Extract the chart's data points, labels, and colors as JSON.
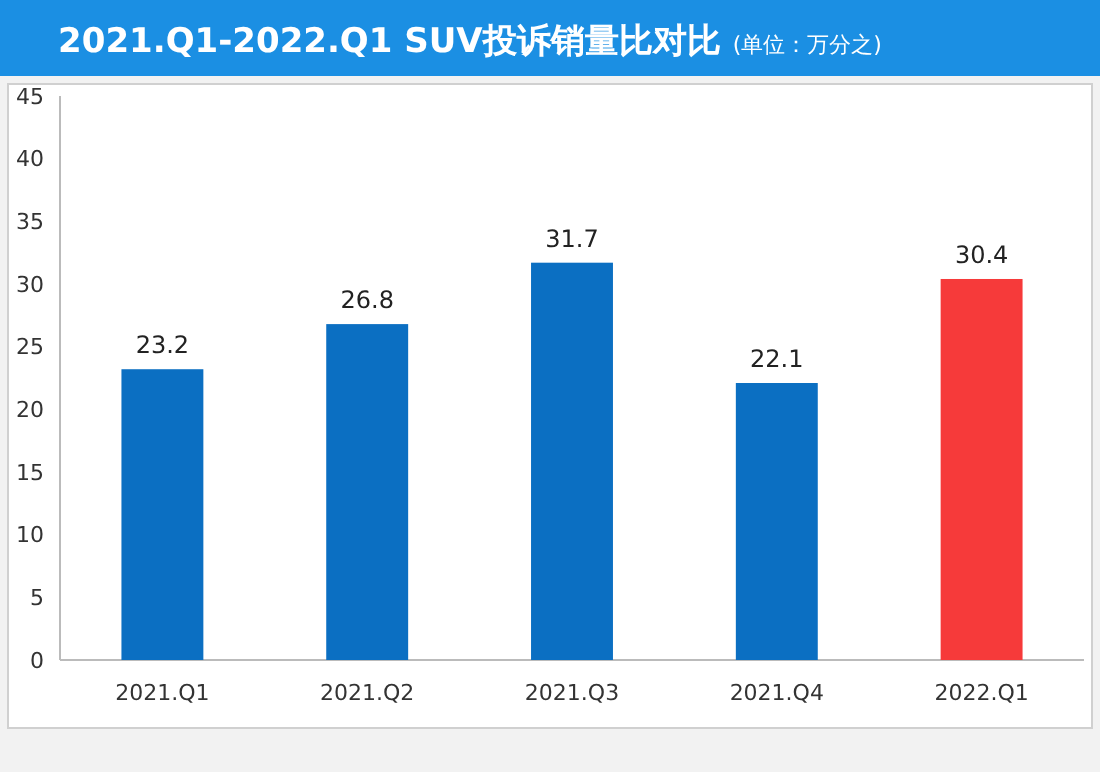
{
  "chart_data": {
    "type": "bar",
    "title": "2021.Q1-2022.Q1 SUV投诉销量比对比",
    "subtitle": "(单位：万分之)",
    "categories": [
      "2021.Q1",
      "2021.Q2",
      "2021.Q3",
      "2021.Q4",
      "2022.Q1"
    ],
    "values": [
      23.2,
      26.8,
      31.7,
      22.1,
      30.4
    ],
    "colors": [
      "#0b6fc2",
      "#0b6fc2",
      "#0b6fc2",
      "#0b6fc2",
      "#f63a3a"
    ],
    "ylim": [
      0,
      45
    ],
    "yticks": [
      0,
      5,
      10,
      15,
      20,
      25,
      30,
      35,
      40,
      45
    ],
    "grid": false,
    "data_labels": true
  }
}
